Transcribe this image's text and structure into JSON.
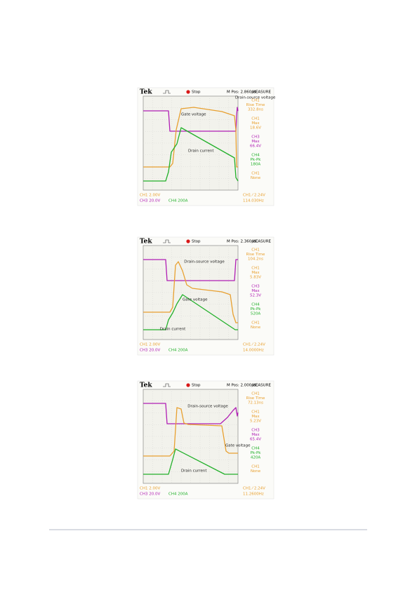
{
  "figures": [
    {
      "header": {
        "brand": "Tek",
        "status": "Stop",
        "position": "M Pos: 2.860µs",
        "menu": "MEASURE"
      },
      "measurements": [
        {
          "channel": "CH1",
          "name": "Rise Time",
          "value": "332.8ns"
        },
        {
          "channel": "CH1",
          "name": "Max",
          "value": "18.6V"
        },
        {
          "channel": "CH3",
          "name": "Max",
          "value": "66.4V"
        },
        {
          "channel": "CH4",
          "name": "Pk-Pk",
          "value": "180A"
        },
        {
          "channel": "CH1",
          "name": "None",
          "value": ""
        }
      ],
      "labels": [
        "Drain-source voltage",
        "Gate voltage",
        "Drain current"
      ],
      "footer": {
        "ch1": "CH1  2.00V",
        "ch3": "CH3  20.0V",
        "ch4": "CH4  200A",
        "trigger": "CH1 ⁄ 2.24V",
        "frequency": "114.030Hz"
      }
    },
    {
      "header": {
        "brand": "Tek",
        "status": "Stop",
        "position": "M Pos: 2.360µs",
        "menu": "MEASURE"
      },
      "measurements": [
        {
          "channel": "CH1",
          "name": "Rise Time",
          "value": "104.2ns"
        },
        {
          "channel": "CH1",
          "name": "Max",
          "value": "5.83V"
        },
        {
          "channel": "CH3",
          "name": "Max",
          "value": "52.3V"
        },
        {
          "channel": "CH4",
          "name": "Pk-Pk",
          "value": "520A"
        },
        {
          "channel": "CH1",
          "name": "None",
          "value": ""
        }
      ],
      "labels": [
        "Drain-source voltage",
        "Gate voltage",
        "Drain current"
      ],
      "footer": {
        "ch1": "CH1  2.00V",
        "ch3": "CH3  20.0V",
        "ch4": "CH4  200A",
        "trigger": "CH1 ⁄ 2.24V",
        "frequency": "14.0000Hz"
      }
    },
    {
      "header": {
        "brand": "Tek",
        "status": "Stop",
        "position": "M Pos: 2.000µs",
        "menu": "MEASURE"
      },
      "measurements": [
        {
          "channel": "CH1",
          "name": "Rise Time",
          "value": "72.13ns"
        },
        {
          "channel": "CH1",
          "name": "Max",
          "value": "5.23V"
        },
        {
          "channel": "CH3",
          "name": "Max",
          "value": "65.4V"
        },
        {
          "channel": "CH4",
          "name": "Pk-Pk",
          "value": "420A"
        },
        {
          "channel": "CH1",
          "name": "None",
          "value": ""
        }
      ],
      "labels": [
        "Drain-source voltage",
        "Gate voltage",
        "Drain current"
      ],
      "footer": {
        "ch1": "CH1  2.00V",
        "ch3": "CH3  20.0V",
        "ch4": "CH4  200A",
        "trigger": "CH1 ⁄ 2.24V",
        "frequency": "11.2600Hz"
      }
    }
  ]
}
